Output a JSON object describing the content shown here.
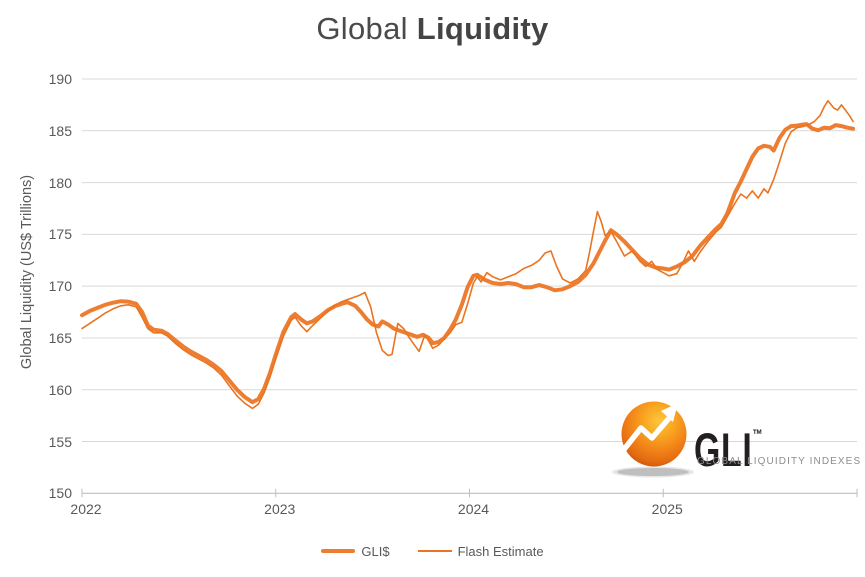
{
  "title": {
    "regular": "Global",
    "bold": "Liquidity"
  },
  "y_axis": {
    "title": "Global Liquidity (US$ Trillions)"
  },
  "legend": [
    {
      "label": "GLI$",
      "style": "thick"
    },
    {
      "label": "Flash Estimate",
      "style": "thin"
    }
  ],
  "logo": {
    "text": "GLI",
    "tm": "™",
    "subtext": "GLOBAL LIQUIDITY INDEXES"
  },
  "colors": {
    "gli": "#ED7D31",
    "flash": "#EA7420",
    "grid": "#D9D9D9",
    "axis": "#BFBFBF",
    "tick_text": "#595959",
    "title_text": "#4A4A4A",
    "logo_dark": "#231F20",
    "logo_gray": "#8D8D8D",
    "logo_orange": "#F28418"
  },
  "chart_data": {
    "type": "line",
    "title": "Global Liquidity",
    "xlabel": "",
    "ylabel": "Global Liquidity (US$ Trillions)",
    "ylim": [
      150,
      190
    ],
    "xlim": [
      2022,
      2026
    ],
    "y_ticks": [
      150,
      155,
      160,
      165,
      170,
      175,
      180,
      185,
      190
    ],
    "x_ticks": [
      2022,
      2023,
      2024,
      2025
    ],
    "grid": true,
    "legend_position": "bottom",
    "series": [
      {
        "name": "GLI$",
        "style": "thick",
        "points": [
          [
            2022.0,
            167.2
          ],
          [
            2022.04,
            167.6
          ],
          [
            2022.08,
            167.9
          ],
          [
            2022.12,
            168.2
          ],
          [
            2022.16,
            168.4
          ],
          [
            2022.2,
            168.55
          ],
          [
            2022.24,
            168.5
          ],
          [
            2022.28,
            168.3
          ],
          [
            2022.31,
            167.5
          ],
          [
            2022.34,
            166.2
          ],
          [
            2022.37,
            165.8
          ],
          [
            2022.41,
            165.7
          ],
          [
            2022.44,
            165.4
          ],
          [
            2022.48,
            164.8
          ],
          [
            2022.52,
            164.2
          ],
          [
            2022.56,
            163.7
          ],
          [
            2022.6,
            163.3
          ],
          [
            2022.64,
            162.9
          ],
          [
            2022.68,
            162.4
          ],
          [
            2022.72,
            161.8
          ],
          [
            2022.76,
            160.9
          ],
          [
            2022.8,
            160.0
          ],
          [
            2022.84,
            159.3
          ],
          [
            2022.88,
            158.8
          ],
          [
            2022.91,
            159.1
          ],
          [
            2022.94,
            160.1
          ],
          [
            2022.97,
            161.6
          ],
          [
            2023.0,
            163.4
          ],
          [
            2023.04,
            165.6
          ],
          [
            2023.08,
            167.0
          ],
          [
            2023.1,
            167.3
          ],
          [
            2023.13,
            166.8
          ],
          [
            2023.16,
            166.4
          ],
          [
            2023.19,
            166.6
          ],
          [
            2023.23,
            167.1
          ],
          [
            2023.27,
            167.7
          ],
          [
            2023.31,
            168.1
          ],
          [
            2023.34,
            168.3
          ],
          [
            2023.37,
            168.45
          ],
          [
            2023.41,
            168.1
          ],
          [
            2023.44,
            167.5
          ],
          [
            2023.47,
            166.8
          ],
          [
            2023.5,
            166.3
          ],
          [
            2023.53,
            166.1
          ],
          [
            2023.55,
            166.6
          ],
          [
            2023.58,
            166.3
          ],
          [
            2023.61,
            165.9
          ],
          [
            2023.64,
            165.7
          ],
          [
            2023.67,
            165.5
          ],
          [
            2023.7,
            165.3
          ],
          [
            2023.73,
            165.1
          ],
          [
            2023.76,
            165.3
          ],
          [
            2023.79,
            165.0
          ],
          [
            2023.81,
            164.5
          ],
          [
            2023.84,
            164.6
          ],
          [
            2023.87,
            165.0
          ],
          [
            2023.9,
            165.8
          ],
          [
            2023.93,
            166.8
          ],
          [
            2023.96,
            168.2
          ],
          [
            2023.99,
            169.9
          ],
          [
            2024.02,
            171.0
          ],
          [
            2024.04,
            171.1
          ],
          [
            2024.08,
            170.6
          ],
          [
            2024.12,
            170.3
          ],
          [
            2024.16,
            170.2
          ],
          [
            2024.2,
            170.3
          ],
          [
            2024.24,
            170.2
          ],
          [
            2024.28,
            169.9
          ],
          [
            2024.32,
            169.9
          ],
          [
            2024.36,
            170.1
          ],
          [
            2024.4,
            169.9
          ],
          [
            2024.44,
            169.6
          ],
          [
            2024.48,
            169.7
          ],
          [
            2024.52,
            170.0
          ],
          [
            2024.56,
            170.4
          ],
          [
            2024.6,
            171.1
          ],
          [
            2024.64,
            172.2
          ],
          [
            2024.67,
            173.3
          ],
          [
            2024.7,
            174.4
          ],
          [
            2024.73,
            175.4
          ],
          [
            2024.76,
            175.0
          ],
          [
            2024.8,
            174.3
          ],
          [
            2024.84,
            173.5
          ],
          [
            2024.88,
            172.7
          ],
          [
            2024.92,
            172.1
          ],
          [
            2024.96,
            171.8
          ],
          [
            2025.0,
            171.7
          ],
          [
            2025.03,
            171.6
          ],
          [
            2025.07,
            171.9
          ],
          [
            2025.11,
            172.3
          ],
          [
            2025.15,
            172.9
          ],
          [
            2025.19,
            173.9
          ],
          [
            2025.23,
            174.7
          ],
          [
            2025.27,
            175.5
          ],
          [
            2025.3,
            176.0
          ],
          [
            2025.33,
            177.0
          ],
          [
            2025.37,
            179.0
          ],
          [
            2025.4,
            180.1
          ],
          [
            2025.43,
            181.3
          ],
          [
            2025.46,
            182.5
          ],
          [
            2025.49,
            183.3
          ],
          [
            2025.52,
            183.55
          ],
          [
            2025.55,
            183.45
          ],
          [
            2025.57,
            183.1
          ],
          [
            2025.6,
            184.3
          ],
          [
            2025.63,
            185.1
          ],
          [
            2025.66,
            185.45
          ],
          [
            2025.69,
            185.5
          ],
          [
            2025.72,
            185.6
          ],
          [
            2025.74,
            185.65
          ],
          [
            2025.77,
            185.2
          ],
          [
            2025.8,
            185.05
          ],
          [
            2025.83,
            185.3
          ],
          [
            2025.86,
            185.25
          ],
          [
            2025.89,
            185.55
          ],
          [
            2025.92,
            185.45
          ],
          [
            2025.95,
            185.3
          ],
          [
            2025.98,
            185.2
          ]
        ]
      },
      {
        "name": "Flash Estimate",
        "style": "thin",
        "points": [
          [
            2022.0,
            165.9
          ],
          [
            2022.04,
            166.4
          ],
          [
            2022.08,
            166.9
          ],
          [
            2022.12,
            167.4
          ],
          [
            2022.16,
            167.8
          ],
          [
            2022.2,
            168.1
          ],
          [
            2022.24,
            168.2
          ],
          [
            2022.28,
            168.0
          ],
          [
            2022.31,
            167.0
          ],
          [
            2022.34,
            165.9
          ],
          [
            2022.37,
            165.5
          ],
          [
            2022.41,
            165.5
          ],
          [
            2022.44,
            165.2
          ],
          [
            2022.48,
            164.5
          ],
          [
            2022.52,
            163.9
          ],
          [
            2022.56,
            163.4
          ],
          [
            2022.6,
            163.0
          ],
          [
            2022.64,
            162.6
          ],
          [
            2022.68,
            162.1
          ],
          [
            2022.72,
            161.4
          ],
          [
            2022.76,
            160.4
          ],
          [
            2022.8,
            159.4
          ],
          [
            2022.84,
            158.7
          ],
          [
            2022.88,
            158.2
          ],
          [
            2022.91,
            158.6
          ],
          [
            2022.94,
            159.7
          ],
          [
            2022.97,
            161.2
          ],
          [
            2023.0,
            163.0
          ],
          [
            2023.04,
            165.2
          ],
          [
            2023.08,
            166.7
          ],
          [
            2023.1,
            167.0
          ],
          [
            2023.13,
            166.2
          ],
          [
            2023.16,
            165.6
          ],
          [
            2023.19,
            166.2
          ],
          [
            2023.23,
            166.9
          ],
          [
            2023.27,
            167.6
          ],
          [
            2023.31,
            168.2
          ],
          [
            2023.34,
            168.5
          ],
          [
            2023.37,
            168.7
          ],
          [
            2023.4,
            168.9
          ],
          [
            2023.43,
            169.1
          ],
          [
            2023.46,
            169.4
          ],
          [
            2023.49,
            168.0
          ],
          [
            2023.52,
            165.5
          ],
          [
            2023.55,
            163.8
          ],
          [
            2023.58,
            163.3
          ],
          [
            2023.6,
            163.4
          ],
          [
            2023.63,
            166.4
          ],
          [
            2023.66,
            165.9
          ],
          [
            2023.69,
            165.0
          ],
          [
            2023.72,
            164.2
          ],
          [
            2023.74,
            163.7
          ],
          [
            2023.77,
            165.3
          ],
          [
            2023.79,
            164.7
          ],
          [
            2023.81,
            164.0
          ],
          [
            2023.84,
            164.3
          ],
          [
            2023.87,
            164.9
          ],
          [
            2023.9,
            165.5
          ],
          [
            2023.93,
            166.3
          ],
          [
            2023.96,
            166.5
          ],
          [
            2023.99,
            168.3
          ],
          [
            2024.02,
            170.3
          ],
          [
            2024.04,
            170.9
          ],
          [
            2024.06,
            170.4
          ],
          [
            2024.09,
            171.3
          ],
          [
            2024.12,
            170.9
          ],
          [
            2024.16,
            170.6
          ],
          [
            2024.2,
            170.9
          ],
          [
            2024.24,
            171.2
          ],
          [
            2024.28,
            171.7
          ],
          [
            2024.32,
            172.0
          ],
          [
            2024.36,
            172.5
          ],
          [
            2024.39,
            173.2
          ],
          [
            2024.42,
            173.4
          ],
          [
            2024.45,
            171.9
          ],
          [
            2024.48,
            170.7
          ],
          [
            2024.52,
            170.3
          ],
          [
            2024.56,
            170.7
          ],
          [
            2024.6,
            171.5
          ],
          [
            2024.62,
            173.3
          ],
          [
            2024.64,
            175.3
          ],
          [
            2024.66,
            177.2
          ],
          [
            2024.68,
            176.2
          ],
          [
            2024.7,
            174.9
          ],
          [
            2024.73,
            175.3
          ],
          [
            2024.76,
            174.3
          ],
          [
            2024.8,
            172.9
          ],
          [
            2024.84,
            173.4
          ],
          [
            2024.88,
            172.4
          ],
          [
            2024.91,
            171.9
          ],
          [
            2024.94,
            172.4
          ],
          [
            2024.97,
            171.6
          ],
          [
            2025.0,
            171.3
          ],
          [
            2025.03,
            171.0
          ],
          [
            2025.07,
            171.2
          ],
          [
            2025.1,
            172.2
          ],
          [
            2025.13,
            173.4
          ],
          [
            2025.16,
            172.4
          ],
          [
            2025.19,
            173.3
          ],
          [
            2025.23,
            174.3
          ],
          [
            2025.27,
            175.2
          ],
          [
            2025.3,
            175.7
          ],
          [
            2025.33,
            176.7
          ],
          [
            2025.37,
            178.0
          ],
          [
            2025.4,
            178.9
          ],
          [
            2025.43,
            178.5
          ],
          [
            2025.46,
            179.2
          ],
          [
            2025.49,
            178.5
          ],
          [
            2025.52,
            179.4
          ],
          [
            2025.54,
            179.0
          ],
          [
            2025.57,
            180.3
          ],
          [
            2025.6,
            182.0
          ],
          [
            2025.63,
            183.8
          ],
          [
            2025.66,
            184.9
          ],
          [
            2025.69,
            185.3
          ],
          [
            2025.72,
            185.4
          ],
          [
            2025.75,
            185.6
          ],
          [
            2025.78,
            185.9
          ],
          [
            2025.81,
            186.5
          ],
          [
            2025.83,
            187.3
          ],
          [
            2025.85,
            187.9
          ],
          [
            2025.88,
            187.2
          ],
          [
            2025.9,
            187.0
          ],
          [
            2025.92,
            187.5
          ],
          [
            2025.94,
            187.0
          ],
          [
            2025.96,
            186.5
          ],
          [
            2025.98,
            185.9
          ]
        ]
      }
    ]
  }
}
